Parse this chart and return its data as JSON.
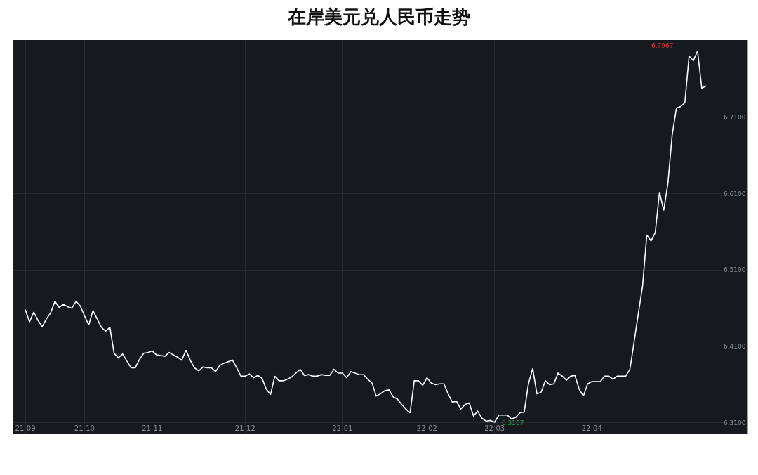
{
  "chart_data": {
    "type": "line",
    "title": "在岸美元兑人民币走势",
    "categories": [
      "21-09",
      null,
      null,
      null,
      null,
      null,
      null,
      null,
      null,
      null,
      null,
      null,
      null,
      null,
      "21-10",
      null,
      null,
      null,
      null,
      null,
      null,
      null,
      null,
      null,
      null,
      null,
      null,
      null,
      null,
      null,
      "21-11",
      null,
      null,
      null,
      null,
      null,
      null,
      null,
      null,
      null,
      null,
      null,
      null,
      null,
      null,
      null,
      null,
      null,
      null,
      null,
      null,
      null,
      "21-12",
      null,
      null,
      null,
      null,
      null,
      null,
      null,
      null,
      null,
      null,
      null,
      null,
      null,
      null,
      null,
      null,
      null,
      null,
      null,
      null,
      null,
      null,
      "22-01",
      null,
      null,
      null,
      null,
      null,
      null,
      null,
      null,
      null,
      null,
      null,
      null,
      null,
      null,
      null,
      null,
      null,
      null,
      null,
      "22-02",
      null,
      null,
      null,
      null,
      null,
      null,
      null,
      null,
      null,
      null,
      null,
      null,
      null,
      null,
      null,
      "22-03",
      null,
      null,
      null,
      null,
      null,
      null,
      null,
      null,
      null,
      null,
      null,
      null,
      null,
      null,
      null,
      null,
      null,
      null,
      null,
      null,
      null,
      null,
      "22-04",
      null,
      null,
      null,
      null,
      null,
      null,
      null,
      null,
      null,
      null,
      null,
      null,
      null,
      null,
      null,
      null,
      null,
      null,
      null,
      null,
      null,
      null,
      null,
      null,
      null,
      null,
      null
    ],
    "series": [
      {
        "color": "#ffffff",
        "values": [
          6.458,
          6.442,
          6.455,
          6.444,
          6.436,
          6.446,
          6.454,
          6.469,
          6.461,
          6.465,
          6.462,
          6.46,
          6.469,
          6.463,
          6.45,
          6.438,
          6.457,
          6.446,
          6.435,
          6.43,
          6.435,
          6.401,
          6.395,
          6.4,
          6.391,
          6.382,
          6.382,
          6.393,
          6.401,
          6.402,
          6.404,
          6.399,
          6.398,
          6.397,
          6.402,
          6.399,
          6.396,
          6.392,
          6.405,
          6.392,
          6.382,
          6.378,
          6.383,
          6.382,
          6.382,
          6.377,
          6.385,
          6.388,
          6.39,
          6.392,
          6.382,
          6.371,
          6.371,
          6.374,
          6.369,
          6.372,
          6.368,
          6.354,
          6.347,
          6.371,
          6.365,
          6.365,
          6.367,
          6.37,
          6.375,
          6.38,
          6.372,
          6.373,
          6.371,
          6.371,
          6.373,
          6.372,
          6.372,
          6.38,
          6.375,
          6.375,
          6.369,
          6.377,
          6.375,
          6.373,
          6.373,
          6.367,
          6.362,
          6.345,
          6.348,
          6.352,
          6.353,
          6.344,
          6.341,
          6.334,
          6.328,
          6.323,
          6.365,
          6.365,
          6.359,
          6.369,
          6.362,
          6.36,
          6.361,
          6.361,
          6.348,
          6.337,
          6.338,
          6.328,
          6.334,
          6.336,
          6.319,
          6.325,
          6.316,
          6.312,
          6.313,
          6.3107,
          6.32,
          6.32,
          6.32,
          6.315,
          6.317,
          6.323,
          6.324,
          6.361,
          6.381,
          6.348,
          6.35,
          6.365,
          6.36,
          6.361,
          6.375,
          6.371,
          6.366,
          6.371,
          6.372,
          6.354,
          6.345,
          6.361,
          6.364,
          6.364,
          6.364,
          6.371,
          6.371,
          6.367,
          6.371,
          6.371,
          6.371,
          6.38,
          6.416,
          6.453,
          6.489,
          6.556,
          6.548,
          6.559,
          6.612,
          6.588,
          6.624,
          6.687,
          6.722,
          6.724,
          6.729,
          6.79,
          6.784,
          6.7967,
          6.748,
          6.751
        ]
      }
    ],
    "ylim": [
      6.295,
      6.811
    ],
    "yticks": [
      {
        "value": 6.31,
        "label": "6.3100"
      },
      {
        "value": 6.41,
        "label": "6.4100"
      },
      {
        "value": 6.51,
        "label": "6.5100"
      },
      {
        "value": 6.61,
        "label": "6.6100"
      },
      {
        "value": 6.71,
        "label": "6.7100"
      }
    ],
    "grid": true,
    "marker": "none",
    "line_style": "solid",
    "annotations": [
      "6.7967",
      "6.3107"
    ]
  }
}
